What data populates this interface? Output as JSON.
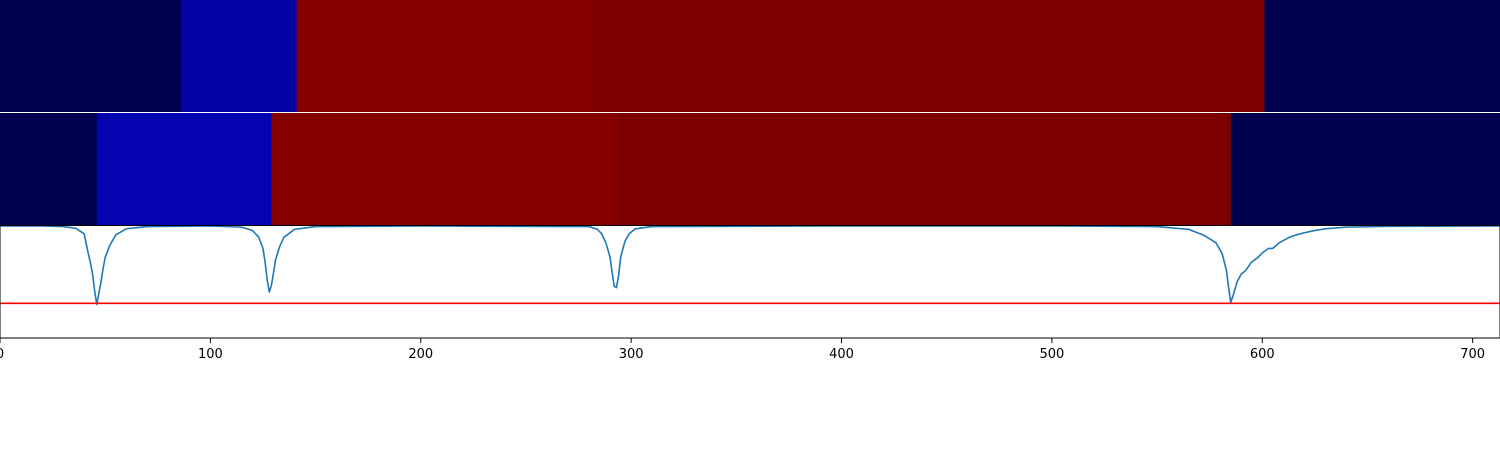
{
  "chart_data": [
    {
      "type": "heatmap",
      "segments": [
        {
          "x0": 0,
          "x1": 86,
          "color": "#000050"
        },
        {
          "x0": 86,
          "x1": 141,
          "color": "#0303a8"
        },
        {
          "x0": 141,
          "x1": 281,
          "color": "#870000"
        },
        {
          "x0": 281,
          "x1": 601,
          "color": "#7c0000"
        },
        {
          "x0": 601,
          "x1": 713,
          "color": "#000050"
        }
      ]
    },
    {
      "type": "heatmap",
      "segments": [
        {
          "x0": 0,
          "x1": 46,
          "color": "#000050"
        },
        {
          "x0": 46,
          "x1": 129,
          "color": "#0303b0"
        },
        {
          "x0": 129,
          "x1": 294,
          "color": "#870000"
        },
        {
          "x0": 294,
          "x1": 585,
          "color": "#7c0000"
        },
        {
          "x0": 585,
          "x1": 713,
          "color": "#000050"
        }
      ]
    },
    {
      "type": "line",
      "xlim": [
        0,
        713
      ],
      "ylim": [
        0,
        1
      ],
      "xticks": [
        "0",
        "100",
        "200",
        "300",
        "400",
        "500",
        "600",
        "700"
      ],
      "tick_values": [
        0,
        100,
        200,
        300,
        400,
        500,
        600,
        700
      ],
      "series": [
        {
          "color": "#1f77b4",
          "x": [
            0,
            20,
            30,
            36,
            40,
            42,
            43,
            44,
            45,
            46,
            47,
            48,
            49,
            50,
            52,
            55,
            60,
            70,
            100,
            115,
            120,
            123,
            125,
            126,
            127,
            128,
            129,
            130,
            131,
            133,
            135,
            140,
            150,
            200,
            280,
            284,
            286,
            288,
            290,
            291,
            292,
            293,
            294,
            295,
            297,
            299,
            302,
            310,
            400,
            500,
            550,
            565,
            572,
            578,
            581,
            583,
            584,
            585,
            586,
            588,
            590,
            592,
            595,
            598,
            600,
            603,
            605,
            608,
            610,
            613,
            616,
            620,
            625,
            630,
            640,
            660,
            713
          ],
          "y": [
            1.0,
            1.0,
            0.995,
            0.98,
            0.93,
            0.75,
            0.67,
            0.57,
            0.42,
            0.3,
            0.4,
            0.5,
            0.62,
            0.72,
            0.82,
            0.92,
            0.975,
            0.995,
            1.0,
            0.99,
            0.96,
            0.9,
            0.8,
            0.68,
            0.52,
            0.41,
            0.47,
            0.58,
            0.7,
            0.82,
            0.9,
            0.97,
            0.995,
            1.0,
            0.995,
            0.97,
            0.93,
            0.85,
            0.72,
            0.58,
            0.46,
            0.45,
            0.55,
            0.72,
            0.86,
            0.93,
            0.975,
            0.995,
            1.0,
            1.0,
            0.995,
            0.97,
            0.92,
            0.85,
            0.75,
            0.6,
            0.45,
            0.32,
            0.37,
            0.5,
            0.57,
            0.6,
            0.68,
            0.72,
            0.76,
            0.8,
            0.8,
            0.85,
            0.87,
            0.9,
            0.92,
            0.94,
            0.96,
            0.975,
            0.99,
            0.997,
            1.0
          ]
        },
        {
          "color": "#ff0000",
          "x": [
            0,
            713
          ],
          "y": [
            0.31,
            0.31
          ]
        }
      ]
    }
  ]
}
